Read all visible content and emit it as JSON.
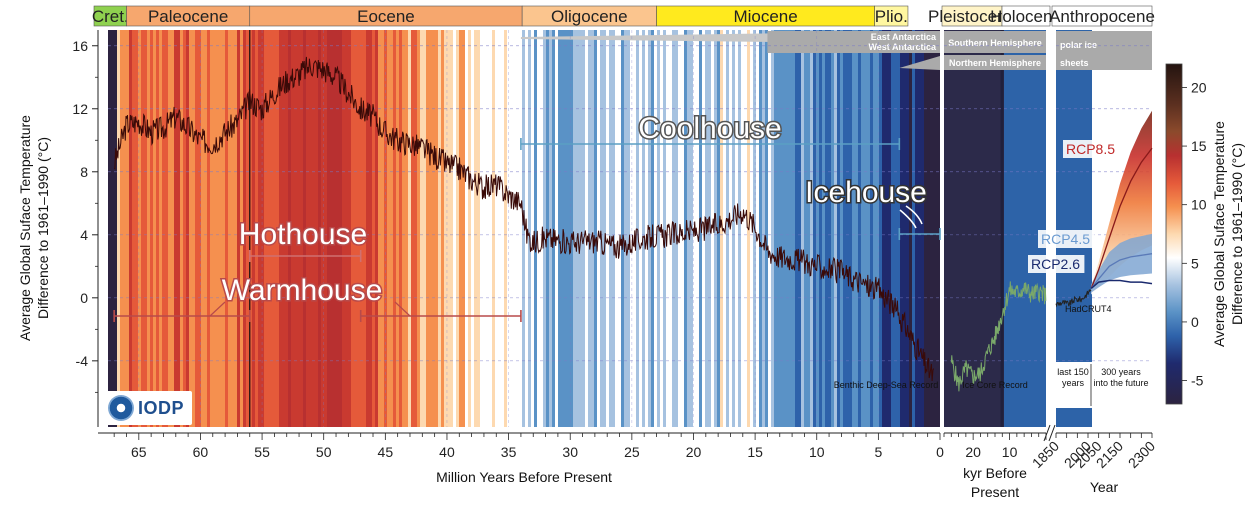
{
  "chart_data": {
    "type": "line",
    "y_axis_title": [
      "Average Global Suface Temperature",
      "Difference to 1961–1990 (°C)"
    ],
    "right_axis_title": [
      "Average Global Suface Temperature",
      "Difference to 1961–1990 (°C)"
    ],
    "y_ticks": [
      "16",
      "12",
      "8",
      "4",
      "0",
      "-4"
    ],
    "ylim": [
      -8,
      17
    ],
    "panels": [
      {
        "name": "deep-time",
        "xlabel": "Million Years Before Present",
        "x_ticks": [
          "65",
          "60",
          "55",
          "50",
          "45",
          "40",
          "35",
          "30",
          "25",
          "20",
          "15",
          "10",
          "5",
          "0"
        ],
        "xlim": [
          67.5,
          0
        ],
        "series": [
          {
            "name": "Benthic Deep-Sea Record",
            "x": [
              67,
              66,
              65,
              64,
              63,
              62,
              61,
              60,
              59,
              58,
              57,
              56,
              55,
              54,
              53,
              52,
              51,
              50,
              49,
              48,
              47,
              46,
              45,
              44,
              43,
              42,
              41,
              40,
              39,
              38,
              37,
              36,
              35,
              34,
              33.5,
              33,
              32,
              30,
              28,
              26,
              24,
              22,
              20,
              18,
              16,
              15,
              14,
              13,
              12,
              10,
              8,
              6,
              5,
              4,
              3,
              2,
              1,
              0.5
            ],
            "y": [
              8.5,
              11,
              11.2,
              10.5,
              10.8,
              11.5,
              10.8,
              10,
              9.8,
              10.5,
              11.2,
              12.5,
              12,
              13,
              13.8,
              14.2,
              14.8,
              14.5,
              14,
              13,
              12,
              11.5,
              10.5,
              10,
              9.8,
              9.5,
              9,
              8.5,
              8.2,
              7.5,
              7,
              7.2,
              6.5,
              6,
              4,
              3.5,
              3.8,
              3.5,
              3.6,
              3.2,
              3.8,
              4,
              4.2,
              4.6,
              5.5,
              4.5,
              3,
              2.6,
              2.5,
              2,
              1.6,
              0.8,
              0.5,
              -0.3,
              -1.5,
              -3,
              -4.5,
              -5
            ]
          }
        ]
      },
      {
        "name": "ice-core",
        "xlabel": "kyr Before Present",
        "x_ticks": [
          "20",
          "10"
        ],
        "series": [
          {
            "name": "Ice Core Record",
            "x": [
              26,
              24,
              22,
              20,
              18,
              16,
              14,
              12,
              10,
              8,
              6,
              4,
              2,
              0
            ],
            "y": [
              -4,
              -5.5,
              -4.5,
              -5,
              -4.8,
              -3.5,
              -2.5,
              -1,
              0.5,
              0.3,
              0.6,
              0.2,
              0.4,
              0.1
            ]
          }
        ]
      },
      {
        "name": "modern-future",
        "xlabel": "Year",
        "x_ticks": [
          "1850",
          "2000",
          "2150",
          "2300"
        ],
        "minor_x_ticks": [
          "2050"
        ],
        "xlim": [
          1850,
          2300
        ],
        "series": [
          {
            "name": "HadCRUT4",
            "x": [
              1850,
              1880,
              1910,
              1940,
              1970,
              2000,
              2015
            ],
            "y": [
              -0.4,
              -0.3,
              -0.4,
              -0.1,
              -0.1,
              0.3,
              0.6
            ]
          },
          {
            "name": "RCP8.5",
            "x": [
              2015,
              2050,
              2100,
              2150,
              2200,
              2250,
              2300
            ],
            "y": [
              0.6,
              1.8,
              3.8,
              5.8,
              7.4,
              8.6,
              9.5
            ]
          },
          {
            "name": "RCP4.5",
            "x": [
              2015,
              2050,
              2100,
              2150,
              2200,
              2250,
              2300
            ],
            "y": [
              0.6,
              1.2,
              2.0,
              2.4,
              2.6,
              2.7,
              2.8
            ]
          },
          {
            "name": "RCP2.6",
            "x": [
              2015,
              2050,
              2100,
              2150,
              2200,
              2250,
              2300
            ],
            "y": [
              0.6,
              1.0,
              1.1,
              1.1,
              1.0,
              1.0,
              0.9
            ]
          }
        ]
      }
    ],
    "epochs": [
      {
        "label": "Cret.",
        "start": 67.5,
        "end": 66,
        "color": "#8fd14f"
      },
      {
        "label": "Paleocene",
        "start": 66,
        "end": 56,
        "color": "#f6a76e"
      },
      {
        "label": "Eocene",
        "start": 56,
        "end": 33.9,
        "color": "#f6a76e"
      },
      {
        "label": "Oligocene",
        "start": 33.9,
        "end": 23,
        "color": "#fbc58e"
      },
      {
        "label": "Miocene",
        "start": 23,
        "end": 5.3,
        "color": "#ffea1e"
      },
      {
        "label": "Plio.",
        "start": 5.3,
        "end": 2.6,
        "color": "#fff7a0"
      },
      {
        "label": "Pleistocene",
        "panel": "ice-core-start",
        "color": "#fff4c8"
      },
      {
        "label": "Holocene",
        "panel": "ice-core-end",
        "color": "#ffffff"
      },
      {
        "label": "Anthropocene",
        "panel": "modern",
        "color": "#ffffff"
      }
    ],
    "climate_states": [
      {
        "label": "Warmhouse",
        "ranges": [
          [
            67,
            56
          ],
          [
            47,
            34
          ]
        ],
        "color": "#b84a4a"
      },
      {
        "label": "Hothouse",
        "ranges": [
          [
            56,
            47
          ]
        ],
        "color": "#d07070"
      },
      {
        "label": "Coolhouse",
        "ranges": [
          [
            34,
            3.3
          ]
        ],
        "color": "#5b9fc4"
      },
      {
        "label": "Icehouse",
        "ranges": [
          [
            3.3,
            0
          ]
        ],
        "color": "#5b9fc4"
      }
    ],
    "ice_sheets": {
      "title": "polar ice sheets",
      "title_lines": [
        "polar ice",
        "sheets"
      ],
      "southern": {
        "label": "Southern Hemisphere",
        "items": [
          "East Antarctica",
          "West Antarctica"
        ]
      },
      "northern": {
        "label": "Northern Hemisphere"
      }
    },
    "colorbar": {
      "ticks": [
        "20",
        "15",
        "10",
        "5",
        "0",
        "-5"
      ],
      "colors": [
        "#2a1a10",
        "#5a3020",
        "#8a4a30",
        "#c03030",
        "#e86040",
        "#f9a060",
        "#fde0b8",
        "#ffffff",
        "#a8c4e0",
        "#5a94c8",
        "#2a5ca8",
        "#202a70",
        "#2e2240"
      ]
    },
    "annotations": {
      "benthic": "Benthic Deep-Sea Record",
      "ice_core": "Ice Core Record",
      "hadcrut": "HadCRUT4",
      "last150": "last 150 years",
      "future": "300 years into the future",
      "last150_lines": [
        "last 150",
        "years"
      ],
      "future_lines": [
        "300 years",
        "into the future"
      ]
    },
    "kyr_label_lines": [
      "kyr Before",
      "Present"
    ]
  },
  "logo": {
    "name": "IODP",
    "icon": "iodp-globe-icon"
  }
}
